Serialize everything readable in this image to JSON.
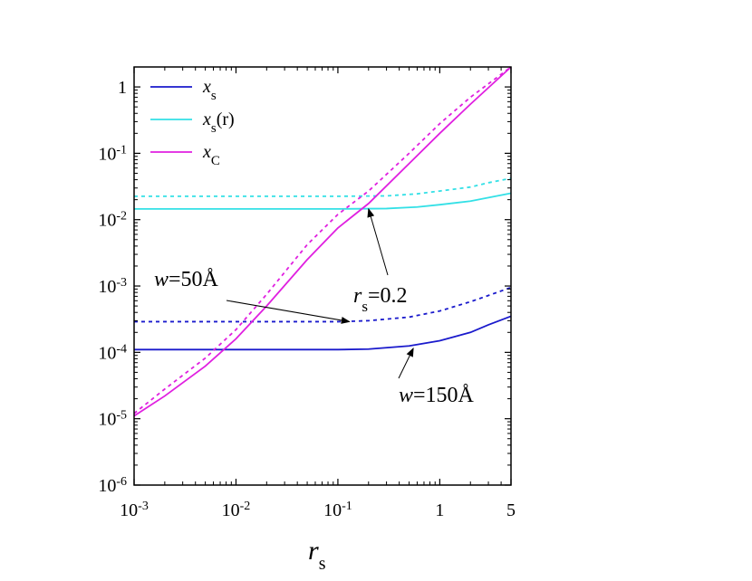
{
  "chart_data": {
    "type": "line",
    "title": "",
    "xlabel": "r",
    "xlabel_sub": "s",
    "ylabel": "",
    "x_scale": "log",
    "y_scale": "log",
    "xlim": [
      0.001,
      5
    ],
    "ylim": [
      1e-06,
      2
    ],
    "grid": false,
    "legend_placement": "top-left",
    "x_ticks": [
      {
        "value": 0.001,
        "base": "10",
        "exp": "-3"
      },
      {
        "value": 0.01,
        "base": "10",
        "exp": "-2"
      },
      {
        "value": 0.1,
        "base": "10",
        "exp": "-1"
      },
      {
        "value": 1,
        "base": "1",
        "exp": ""
      },
      {
        "value": 5,
        "base": "5",
        "exp": ""
      }
    ],
    "y_ticks": [
      {
        "value": 1,
        "base": "1",
        "exp": ""
      },
      {
        "value": 0.1,
        "base": "10",
        "exp": "-1"
      },
      {
        "value": 0.01,
        "base": "10",
        "exp": "-2"
      },
      {
        "value": 0.001,
        "base": "10",
        "exp": "-3"
      },
      {
        "value": 0.0001,
        "base": "10",
        "exp": "-4"
      },
      {
        "value": 1e-05,
        "base": "10",
        "exp": "-5"
      },
      {
        "value": 1e-06,
        "base": "10",
        "exp": "-6"
      }
    ],
    "legend": [
      {
        "main": "x",
        "sub": "s",
        "suffix": "",
        "color": "#1a1acc"
      },
      {
        "main": "x",
        "sub": "s",
        "suffix": "(r)",
        "color": "#33e0e6"
      },
      {
        "main": "x",
        "sub": "C",
        "suffix": "",
        "color": "#e020e0"
      }
    ],
    "series": [
      {
        "key": "xs-w150",
        "color": "#1a1acc",
        "dash": "solid",
        "points": [
          [
            0.001,
            0.00011
          ],
          [
            0.1,
            0.00011
          ],
          [
            0.2,
            0.000112
          ],
          [
            0.5,
            0.000125
          ],
          [
            1,
            0.00015
          ],
          [
            2,
            0.0002
          ],
          [
            3,
            0.00026
          ],
          [
            5,
            0.00035
          ]
        ]
      },
      {
        "key": "xs-w50",
        "color": "#1a1acc",
        "dash": "dotted",
        "points": [
          [
            0.001,
            0.00029
          ],
          [
            0.1,
            0.00029
          ],
          [
            0.2,
            0.0003
          ],
          [
            0.5,
            0.00034
          ],
          [
            1,
            0.00042
          ],
          [
            2,
            0.00058
          ],
          [
            3,
            0.00072
          ],
          [
            5,
            0.00095
          ]
        ]
      },
      {
        "key": "xsr-w150",
        "color": "#33e0e6",
        "dash": "solid",
        "points": [
          [
            0.001,
            0.0145
          ],
          [
            0.1,
            0.0145
          ],
          [
            0.3,
            0.0147
          ],
          [
            0.6,
            0.0155
          ],
          [
            1,
            0.0168
          ],
          [
            2,
            0.019
          ],
          [
            3,
            0.0215
          ],
          [
            5,
            0.025
          ]
        ]
      },
      {
        "key": "xsr-w50",
        "color": "#33e0e6",
        "dash": "dotted",
        "points": [
          [
            0.001,
            0.0225
          ],
          [
            0.1,
            0.0225
          ],
          [
            0.3,
            0.0228
          ],
          [
            0.6,
            0.0245
          ],
          [
            1,
            0.027
          ],
          [
            2,
            0.031
          ],
          [
            3,
            0.036
          ],
          [
            5,
            0.042
          ]
        ]
      },
      {
        "key": "xc-w150",
        "color": "#e020e0",
        "dash": "solid",
        "points": [
          [
            0.001,
            1.1e-05
          ],
          [
            0.002,
            2.2e-05
          ],
          [
            0.005,
            6.2e-05
          ],
          [
            0.01,
            0.00016
          ],
          [
            0.02,
            0.0005
          ],
          [
            0.05,
            0.0025
          ],
          [
            0.1,
            0.0075
          ],
          [
            0.2,
            0.0175
          ],
          [
            0.5,
            0.07
          ],
          [
            1,
            0.2
          ],
          [
            2,
            0.55
          ],
          [
            5,
            2
          ]
        ]
      },
      {
        "key": "xc-w50",
        "color": "#e020e0",
        "dash": "dotted",
        "points": [
          [
            0.001,
            1.2e-05
          ],
          [
            0.002,
            2.8e-05
          ],
          [
            0.005,
            8.2e-05
          ],
          [
            0.01,
            0.00022
          ],
          [
            0.02,
            0.00075
          ],
          [
            0.05,
            0.0042
          ],
          [
            0.1,
            0.012
          ],
          [
            0.2,
            0.027
          ],
          [
            0.5,
            0.1
          ],
          [
            1,
            0.28
          ],
          [
            2,
            0.7
          ],
          [
            5,
            2
          ]
        ]
      }
    ],
    "annotations": [
      {
        "key": "w50",
        "italic_part": "w",
        "text": "=50Å",
        "arrow_to": [
          0.13,
          0.00029
        ]
      },
      {
        "key": "rs02",
        "italic_part": "r",
        "sub": "s",
        "text": "=0.2",
        "arrow_to": [
          0.2,
          0.0145
        ]
      },
      {
        "key": "w150",
        "italic_part": "w",
        "text": "=150Å",
        "arrow_to": [
          0.55,
          0.000115
        ]
      }
    ]
  }
}
